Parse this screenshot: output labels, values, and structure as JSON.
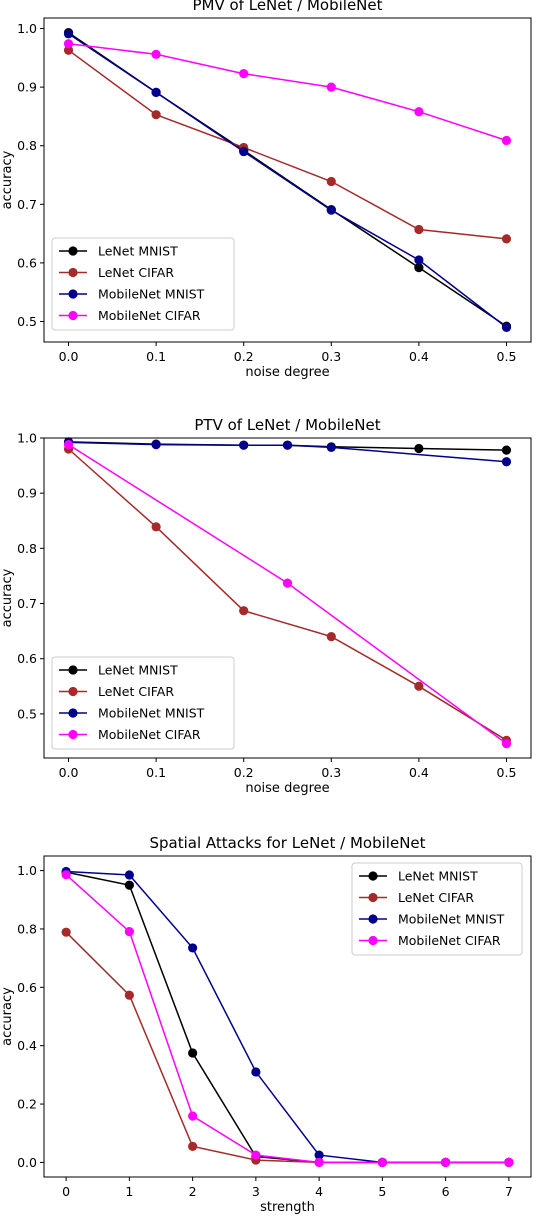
{
  "chart_data": [
    {
      "type": "line",
      "title": "PMV of LeNet / MobileNet",
      "xlabel": "noise degree",
      "ylabel": "accuracy",
      "x": [
        0.0,
        0.1,
        0.2,
        0.3,
        0.4,
        0.5
      ],
      "xticks": [
        0.0,
        0.1,
        0.2,
        0.3,
        0.4,
        0.5
      ],
      "xticklabels": [
        "0.0",
        "0.1",
        "0.2",
        "0.3",
        "0.4",
        "0.5"
      ],
      "yticks": [
        0.5,
        0.6,
        0.7,
        0.8,
        0.9,
        1.0
      ],
      "yticklabels": [
        "0.5",
        "0.6",
        "0.7",
        "0.8",
        "0.9",
        "1.0"
      ],
      "xlim": [
        -0.028,
        0.528
      ],
      "ylim": [
        0.465,
        1.018
      ],
      "legend_loc": "lower-left",
      "grid": false,
      "series": [
        {
          "name": "LeNet MNIST",
          "color": "#000000",
          "x": [
            0.0,
            0.1,
            0.2,
            0.3,
            0.4,
            0.5
          ],
          "values": [
            0.993,
            0.891,
            0.792,
            0.691,
            0.592,
            0.492
          ]
        },
        {
          "name": "LeNet CIFAR",
          "color": "#a52a2a",
          "x": [
            0.0,
            0.1,
            0.2,
            0.3,
            0.4,
            0.5
          ],
          "values": [
            0.963,
            0.853,
            0.797,
            0.739,
            0.657,
            0.641
          ]
        },
        {
          "name": "MobileNet MNIST",
          "color": "#00008b",
          "x": [
            0.0,
            0.1,
            0.2,
            0.3,
            0.4,
            0.5
          ],
          "values": [
            0.991,
            0.891,
            0.79,
            0.69,
            0.605,
            0.49
          ]
        },
        {
          "name": "MobileNet CIFAR",
          "color": "#ff00ff",
          "x": [
            0.0,
            0.1,
            0.2,
            0.3,
            0.4,
            0.5
          ],
          "values": [
            0.974,
            0.956,
            0.923,
            0.9,
            0.858,
            0.809
          ]
        }
      ]
    },
    {
      "type": "line",
      "title": "PTV of LeNet / MobileNet",
      "xlabel": "noise degree",
      "ylabel": "accuracy",
      "xticks": [
        0.0,
        0.1,
        0.2,
        0.3,
        0.4,
        0.5
      ],
      "xticklabels": [
        "0.0",
        "0.1",
        "0.2",
        "0.3",
        "0.4",
        "0.5"
      ],
      "yticks": [
        0.5,
        0.6,
        0.7,
        0.8,
        0.9,
        1.0
      ],
      "yticklabels": [
        "0.5",
        "0.6",
        "0.7",
        "0.8",
        "0.9",
        "1.0"
      ],
      "xlim": [
        -0.028,
        0.528
      ],
      "ylim": [
        0.42,
        1.0
      ],
      "legend_loc": "lower-left",
      "grid": false,
      "series": [
        {
          "name": "LeNet MNIST",
          "color": "#000000",
          "x": [
            0.0,
            0.1,
            0.2,
            0.25,
            0.3,
            0.4,
            0.5
          ],
          "values": [
            0.993,
            0.989,
            0.987,
            0.987,
            0.984,
            0.981,
            0.978
          ]
        },
        {
          "name": "LeNet CIFAR",
          "color": "#a52a2a",
          "x": [
            0.0,
            0.1,
            0.2,
            0.3,
            0.4,
            0.5
          ],
          "values": [
            0.98,
            0.839,
            0.687,
            0.64,
            0.55,
            0.452
          ]
        },
        {
          "name": "MobileNet MNIST",
          "color": "#00008b",
          "x": [
            0.0,
            0.1,
            0.2,
            0.25,
            0.3,
            0.5
          ],
          "values": [
            0.992,
            0.988,
            0.987,
            0.987,
            0.983,
            0.957
          ]
        },
        {
          "name": "MobileNet CIFAR",
          "color": "#ff00ff",
          "x": [
            0.0,
            0.25,
            0.5
          ],
          "values": [
            0.988,
            0.737,
            0.446
          ]
        }
      ]
    },
    {
      "type": "line",
      "title": "Spatial Attacks for LeNet / MobileNet",
      "xlabel": "strength",
      "ylabel": "accuracy",
      "xticks": [
        0,
        1,
        2,
        3,
        4,
        5,
        6,
        7
      ],
      "xticklabels": [
        "0",
        "1",
        "2",
        "3",
        "4",
        "5",
        "6",
        "7"
      ],
      "yticks": [
        0.0,
        0.2,
        0.4,
        0.6,
        0.8,
        1.0
      ],
      "yticklabels": [
        "0.0",
        "0.2",
        "0.4",
        "0.6",
        "0.8",
        "1.0"
      ],
      "xlim": [
        -0.35,
        7.35
      ],
      "ylim": [
        -0.05,
        1.05
      ],
      "legend_loc": "upper-right",
      "grid": false,
      "series": [
        {
          "name": "LeNet MNIST",
          "color": "#000000",
          "x": [
            0,
            1,
            2,
            3,
            4,
            5,
            6,
            7
          ],
          "values": [
            0.995,
            0.95,
            0.375,
            0.02,
            0.0,
            0.0,
            0.0,
            0.0
          ]
        },
        {
          "name": "LeNet CIFAR",
          "color": "#a52a2a",
          "x": [
            0,
            1,
            2,
            3,
            4,
            5,
            6,
            7
          ],
          "values": [
            0.789,
            0.573,
            0.055,
            0.008,
            0.0,
            0.0,
            0.0,
            0.0
          ]
        },
        {
          "name": "MobileNet MNIST",
          "color": "#00008b",
          "x": [
            0,
            1,
            2,
            3,
            4,
            5,
            6,
            7
          ],
          "values": [
            0.997,
            0.985,
            0.735,
            0.31,
            0.025,
            0.0,
            0.0,
            0.0
          ]
        },
        {
          "name": "MobileNet CIFAR",
          "color": "#ff00ff",
          "x": [
            0,
            1,
            2,
            3,
            4,
            5,
            6,
            7
          ],
          "values": [
            0.986,
            0.791,
            0.159,
            0.025,
            0.0,
            0.0,
            0.0,
            0.0
          ]
        }
      ]
    }
  ]
}
